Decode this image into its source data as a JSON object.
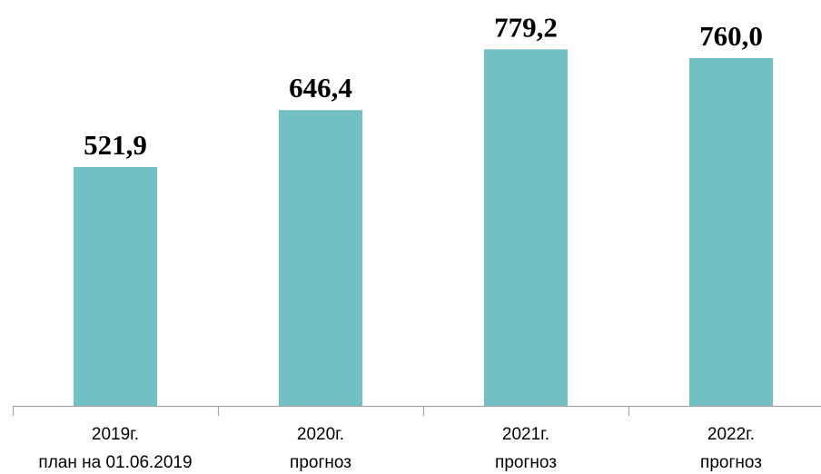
{
  "chart_data": {
    "type": "bar",
    "categories": [
      [
        "2019г.",
        "план на 01.06.2019"
      ],
      [
        "2020г.",
        "прогноз"
      ],
      [
        "2021г.",
        "прогноз"
      ],
      [
        "2022г.",
        "прогноз"
      ]
    ],
    "values": [
      521.9,
      646.4,
      779.2,
      760.0
    ],
    "value_labels": [
      "521,9",
      "646,4",
      "779,2",
      "760,0"
    ],
    "ylim": [
      0,
      887
    ],
    "grid": false,
    "legend": "none",
    "colors": {
      "bar": "#72BFC4",
      "axis": "#A6A6A6"
    }
  }
}
